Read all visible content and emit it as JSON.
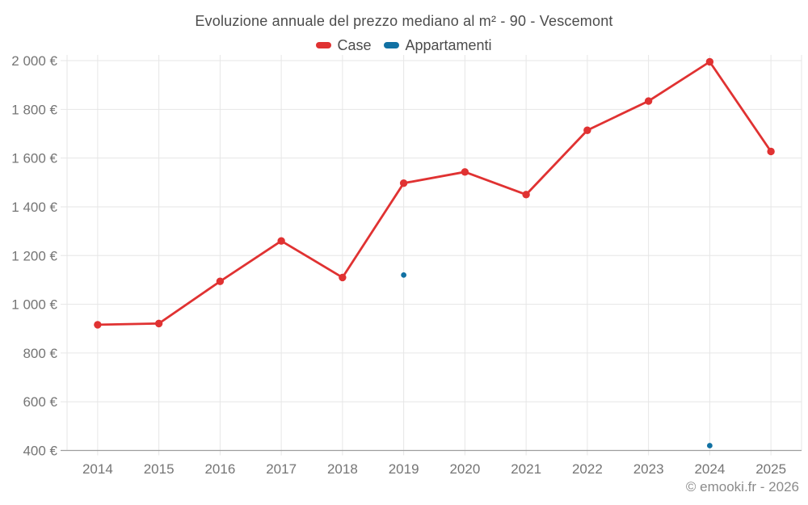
{
  "title": "Evoluzione annuale del prezzo mediano al m² - 90 - Vescemont",
  "footer": {
    "text": "© emooki.fr - 2026"
  },
  "colors": {
    "case_red": "#e03232",
    "appartamenti_blue": "#1171a3",
    "gridline": "#e6e6e6",
    "axis_line": "#9e9e9e",
    "tick_label": "#757575",
    "title_text": "#4c4c4c",
    "footer_text": "#8b8b8b"
  },
  "chart_data": {
    "type": "line",
    "title": "Evoluzione annuale del prezzo mediano al m² - 90 - Vescemont",
    "categories": [
      2014,
      2015,
      2016,
      2017,
      2018,
      2019,
      2020,
      2021,
      2022,
      2023,
      2024,
      2025
    ],
    "series": [
      {
        "name": "Case",
        "color": "#e03232",
        "values": [
          916,
          921,
          1094,
          1260,
          1110,
          1497,
          1543,
          1450,
          1714,
          1834,
          1995,
          1627
        ]
      },
      {
        "name": "Appartamenti",
        "color": "#1171a3",
        "values": [
          null,
          null,
          null,
          null,
          null,
          1120,
          null,
          null,
          null,
          null,
          420,
          null
        ]
      }
    ],
    "xlabel": "",
    "ylabel": "",
    "ylim": [
      400,
      2000
    ],
    "ytick_step": 200,
    "ytick_suffix": " €",
    "grid": true,
    "legend_position": "top",
    "legend_entries": [
      "Case",
      "Appartamenti"
    ]
  }
}
